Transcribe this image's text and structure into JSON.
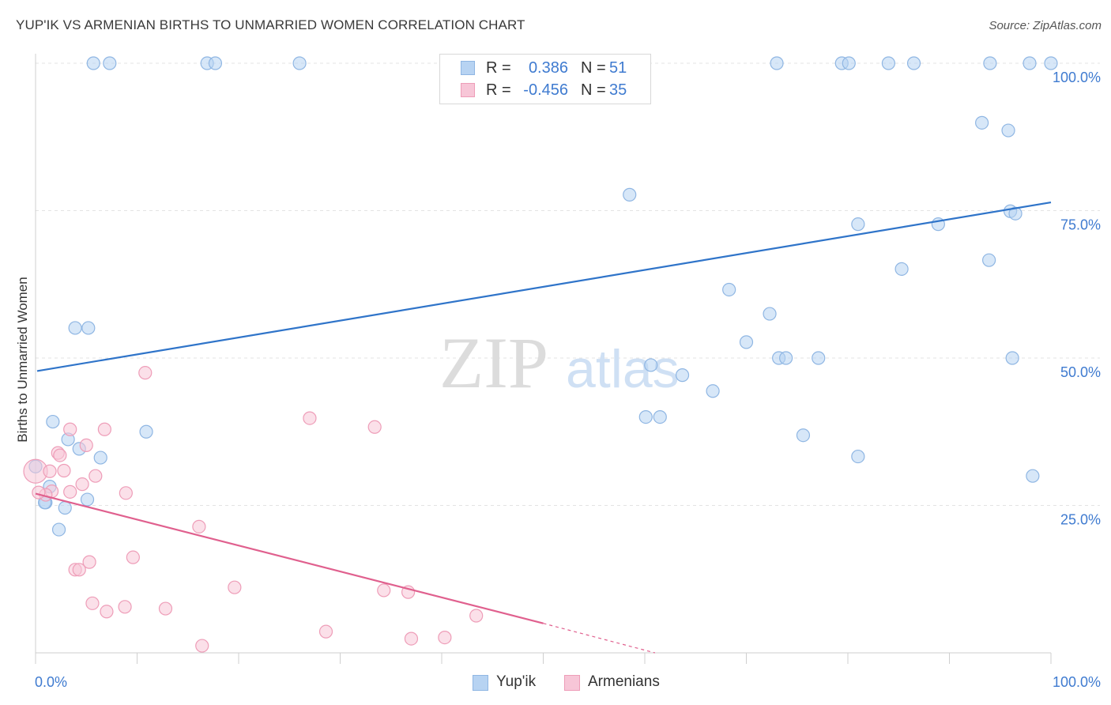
{
  "title": "YUP'IK VS ARMENIAN BIRTHS TO UNMARRIED WOMEN CORRELATION CHART",
  "source": "Source: ZipAtlas.com",
  "watermark": {
    "zip": "ZIP",
    "atlas": "atlas"
  },
  "legend": {
    "r_label": "R =",
    "n_label": "N =",
    "rows": [
      {
        "r": "0.386",
        "n": "51"
      },
      {
        "r": "-0.456",
        "n": "35"
      }
    ]
  },
  "colors": {
    "yupik_fill": "#b7d3f2",
    "yupik_stroke": "#8fb6e3",
    "yupik_line": "#2f74c9",
    "armenian_fill": "#f7c6d7",
    "armenian_stroke": "#ee9db8",
    "armenian_line": "#e0608e",
    "value_text": "#3f7bd0",
    "grid": "#e3e3e3"
  },
  "chart_data": {
    "type": "scatter",
    "ylabel": "Births to Unmarried Women",
    "x_tick_labels": [
      "0.0%",
      "100.0%"
    ],
    "y_tick_labels": [
      "100.0%",
      "75.0%",
      "50.0%",
      "25.0%"
    ],
    "y_ticks": [
      100,
      75,
      50,
      25
    ],
    "xlim": [
      0,
      100
    ],
    "ylim": [
      0,
      100
    ],
    "grid": true,
    "legend_position": "top-center",
    "series": [
      {
        "name": "Yup'ik",
        "points": [
          [
            5.7,
            100
          ],
          [
            7.3,
            100
          ],
          [
            16.9,
            100
          ],
          [
            17.7,
            100
          ],
          [
            26.0,
            100
          ],
          [
            73.0,
            100
          ],
          [
            79.4,
            100
          ],
          [
            80.1,
            100
          ],
          [
            84.0,
            100
          ],
          [
            86.5,
            100
          ],
          [
            94.0,
            100
          ],
          [
            97.9,
            100
          ],
          [
            100.0,
            100
          ],
          [
            93.2,
            89.9
          ],
          [
            95.8,
            88.6
          ],
          [
            58.5,
            77.7
          ],
          [
            96.0,
            74.9
          ],
          [
            96.5,
            74.5
          ],
          [
            81.0,
            72.7
          ],
          [
            88.9,
            72.7
          ],
          [
            93.9,
            66.6
          ],
          [
            85.3,
            65.1
          ],
          [
            68.3,
            61.6
          ],
          [
            3.9,
            55.1
          ],
          [
            5.2,
            55.1
          ],
          [
            72.3,
            57.5
          ],
          [
            70.0,
            52.7
          ],
          [
            73.2,
            50.0
          ],
          [
            73.9,
            50.0
          ],
          [
            77.1,
            50.0
          ],
          [
            96.2,
            50.0
          ],
          [
            60.6,
            48.8
          ],
          [
            63.7,
            47.1
          ],
          [
            66.7,
            44.4
          ],
          [
            60.1,
            40.0
          ],
          [
            61.5,
            40.0
          ],
          [
            1.7,
            39.2
          ],
          [
            10.9,
            37.5
          ],
          [
            3.2,
            36.2
          ],
          [
            4.3,
            34.6
          ],
          [
            75.6,
            36.9
          ],
          [
            81.0,
            33.3
          ],
          [
            6.4,
            33.1
          ],
          [
            0.0,
            31.6
          ],
          [
            98.2,
            30.0
          ],
          [
            1.4,
            28.2
          ],
          [
            1.0,
            25.5
          ],
          [
            5.1,
            26.0
          ],
          [
            2.9,
            24.6
          ],
          [
            2.3,
            20.9
          ],
          [
            0.9,
            25.5
          ]
        ]
      },
      {
        "name": "Armenians",
        "points": [
          [
            0.0,
            30.8
          ],
          [
            1.4,
            30.8
          ],
          [
            2.2,
            33.9
          ],
          [
            2.4,
            33.5
          ],
          [
            2.8,
            30.9
          ],
          [
            3.4,
            37.9
          ],
          [
            5.0,
            35.2
          ],
          [
            6.8,
            37.9
          ],
          [
            10.8,
            47.5
          ],
          [
            27.0,
            39.8
          ],
          [
            33.4,
            38.3
          ],
          [
            1.6,
            27.4
          ],
          [
            3.4,
            27.3
          ],
          [
            4.6,
            28.6
          ],
          [
            5.9,
            30.0
          ],
          [
            8.9,
            27.1
          ],
          [
            1.0,
            26.8
          ],
          [
            16.1,
            21.4
          ],
          [
            9.6,
            16.2
          ],
          [
            5.3,
            15.4
          ],
          [
            3.9,
            14.1
          ],
          [
            4.3,
            14.1
          ],
          [
            19.6,
            11.1
          ],
          [
            34.3,
            10.6
          ],
          [
            36.7,
            10.3
          ],
          [
            5.6,
            8.4
          ],
          [
            8.8,
            7.8
          ],
          [
            7.0,
            7.0
          ],
          [
            12.8,
            7.5
          ],
          [
            43.4,
            6.3
          ],
          [
            28.6,
            3.6
          ],
          [
            37.0,
            2.4
          ],
          [
            40.3,
            2.6
          ],
          [
            16.4,
            1.2
          ],
          [
            0.3,
            27.2
          ]
        ]
      }
    ],
    "trend_lines": [
      {
        "series": "Yup'ik",
        "start": [
          0,
          47.8
        ],
        "end": [
          100,
          76.4
        ]
      },
      {
        "series": "Armenians",
        "start": [
          0,
          27.0
        ],
        "end": [
          50,
          5.0
        ],
        "dashed_to": [
          61,
          0
        ]
      }
    ]
  }
}
